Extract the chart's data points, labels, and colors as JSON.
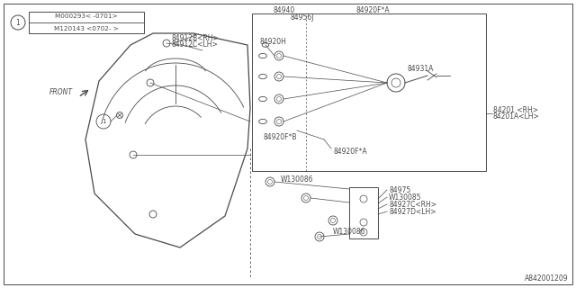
{
  "bg_color": "#ffffff",
  "line_color": "#4a4a4a",
  "diagram_code": "A842001209",
  "info_line1": "M000293< -0701>",
  "info_line2": "M120143 <0702- >"
}
